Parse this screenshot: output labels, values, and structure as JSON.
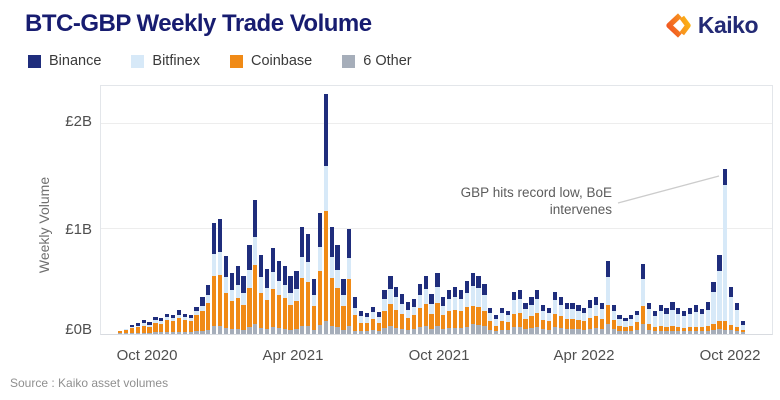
{
  "title": "BTC-GBP Weekly Trade Volume",
  "logo": {
    "text": "Kaiko",
    "icon": "kaiko-diamond-icon",
    "icon_colors": [
      "#f04e23",
      "#f7901e",
      "#fcb415"
    ]
  },
  "legend": [
    {
      "label": "Binance",
      "color": "#1f2d7c"
    },
    {
      "label": "Bitfinex",
      "color": "#d7e9f8"
    },
    {
      "label": "Coinbase",
      "color": "#f08a16"
    },
    {
      "label": "6 Other",
      "color": "#a6aeba"
    }
  ],
  "annotation": {
    "line1": "GBP hits record low, BoE",
    "line2": "intervenes"
  },
  "source": "Source : Kaiko asset volumes",
  "chart_data": {
    "type": "bar",
    "stacked": true,
    "title": "BTC-GBP Weekly Trade Volume",
    "ylabel": "Weekly Volume",
    "xlabel": "",
    "unit": "GBP billions per week",
    "ylim": [
      0,
      2.4
    ],
    "yticks": [
      "£0B",
      "£1B",
      "£2B"
    ],
    "xticks": [
      "Oct 2020",
      "Apr 2021",
      "Oct 2021",
      "Apr 2022",
      "Oct 2022"
    ],
    "grid": true,
    "legend_position": "top-left",
    "x_frequency": "weekly",
    "n_weeks": 107,
    "stack_order": "bottom-to-top",
    "series": [
      {
        "name": "6 Other",
        "color": "#a6aeba",
        "values": [
          0.01,
          0.01,
          0.01,
          0.01,
          0.01,
          0.01,
          0.02,
          0.02,
          0.02,
          0.02,
          0.02,
          0.02,
          0.02,
          0.03,
          0.03,
          0.04,
          0.08,
          0.08,
          0.06,
          0.05,
          0.05,
          0.04,
          0.07,
          0.1,
          0.06,
          0.05,
          0.07,
          0.06,
          0.05,
          0.04,
          0.05,
          0.08,
          0.08,
          0.04,
          0.09,
          0.12,
          0.08,
          0.07,
          0.04,
          0.08,
          0.03,
          0.03,
          0.03,
          0.04,
          0.03,
          0.06,
          0.08,
          0.06,
          0.05,
          0.04,
          0.05,
          0.07,
          0.08,
          0.05,
          0.08,
          0.05,
          0.06,
          0.06,
          0.06,
          0.07,
          0.1,
          0.09,
          0.08,
          0.04,
          0.03,
          0.04,
          0.04,
          0.07,
          0.07,
          0.05,
          0.06,
          0.07,
          0.05,
          0.04,
          0.07,
          0.06,
          0.05,
          0.05,
          0.05,
          0.04,
          0.05,
          0.06,
          0.05,
          0.1,
          0.05,
          0.03,
          0.03,
          0.03,
          0.04,
          0.1,
          0.04,
          0.03,
          0.03,
          0.03,
          0.03,
          0.03,
          0.03,
          0.03,
          0.03,
          0.03,
          0.03,
          0.04,
          0.05,
          0.04,
          0.04,
          0.03,
          0.02
        ]
      },
      {
        "name": "Coinbase",
        "color": "#f08a16",
        "values": [
          0.02,
          0.03,
          0.05,
          0.06,
          0.07,
          0.06,
          0.09,
          0.08,
          0.11,
          0.1,
          0.13,
          0.11,
          0.1,
          0.15,
          0.19,
          0.26,
          0.47,
          0.48,
          0.33,
          0.26,
          0.29,
          0.24,
          0.37,
          0.56,
          0.33,
          0.27,
          0.36,
          0.31,
          0.29,
          0.24,
          0.26,
          0.45,
          0.42,
          0.23,
          0.51,
          1.05,
          0.45,
          0.37,
          0.23,
          0.44,
          0.15,
          0.08,
          0.08,
          0.1,
          0.08,
          0.16,
          0.21,
          0.17,
          0.14,
          0.11,
          0.13,
          0.18,
          0.21,
          0.14,
          0.22,
          0.13,
          0.16,
          0.17,
          0.16,
          0.19,
          0.17,
          0.17,
          0.14,
          0.08,
          0.05,
          0.08,
          0.07,
          0.12,
          0.13,
          0.09,
          0.11,
          0.13,
          0.08,
          0.08,
          0.12,
          0.11,
          0.09,
          0.09,
          0.08,
          0.08,
          0.1,
          0.11,
          0.09,
          0.18,
          0.08,
          0.05,
          0.04,
          0.05,
          0.07,
          0.17,
          0.06,
          0.04,
          0.05,
          0.04,
          0.05,
          0.04,
          0.03,
          0.04,
          0.04,
          0.04,
          0.05,
          0.06,
          0.07,
          0.08,
          0.05,
          0.04,
          0.02
        ]
      },
      {
        "name": "Bitfinex",
        "color": "#d7e9f8",
        "values": [
          0.0,
          0.01,
          0.01,
          0.01,
          0.02,
          0.02,
          0.02,
          0.02,
          0.03,
          0.03,
          0.03,
          0.03,
          0.03,
          0.04,
          0.05,
          0.07,
          0.21,
          0.22,
          0.15,
          0.11,
          0.13,
          0.11,
          0.17,
          0.26,
          0.15,
          0.12,
          0.16,
          0.14,
          0.13,
          0.11,
          0.12,
          0.2,
          0.19,
          0.1,
          0.23,
          0.43,
          0.2,
          0.17,
          0.1,
          0.2,
          0.07,
          0.06,
          0.05,
          0.07,
          0.05,
          0.11,
          0.14,
          0.12,
          0.1,
          0.08,
          0.08,
          0.12,
          0.14,
          0.1,
          0.15,
          0.09,
          0.11,
          0.12,
          0.11,
          0.13,
          0.19,
          0.18,
          0.15,
          0.08,
          0.06,
          0.08,
          0.07,
          0.13,
          0.13,
          0.1,
          0.11,
          0.13,
          0.09,
          0.08,
          0.13,
          0.11,
          0.1,
          0.1,
          0.09,
          0.08,
          0.1,
          0.11,
          0.1,
          0.26,
          0.09,
          0.06,
          0.05,
          0.06,
          0.07,
          0.25,
          0.14,
          0.1,
          0.14,
          0.12,
          0.15,
          0.12,
          0.11,
          0.12,
          0.14,
          0.12,
          0.15,
          0.3,
          0.48,
          1.3,
          0.26,
          0.16,
          0.05
        ]
      },
      {
        "name": "Binance",
        "color": "#1f2d7c",
        "values": [
          0.0,
          0.0,
          0.01,
          0.02,
          0.03,
          0.02,
          0.03,
          0.03,
          0.03,
          0.03,
          0.05,
          0.03,
          0.03,
          0.04,
          0.08,
          0.1,
          0.3,
          0.32,
          0.2,
          0.16,
          0.18,
          0.16,
          0.24,
          0.36,
          0.21,
          0.18,
          0.23,
          0.19,
          0.18,
          0.16,
          0.17,
          0.29,
          0.26,
          0.15,
          0.32,
          0.69,
          0.29,
          0.24,
          0.15,
          0.28,
          0.1,
          0.05,
          0.04,
          0.05,
          0.05,
          0.09,
          0.12,
          0.1,
          0.09,
          0.07,
          0.07,
          0.11,
          0.12,
          0.09,
          0.13,
          0.08,
          0.09,
          0.1,
          0.09,
          0.11,
          0.12,
          0.11,
          0.11,
          0.05,
          0.04,
          0.05,
          0.04,
          0.08,
          0.09,
          0.06,
          0.07,
          0.09,
          0.06,
          0.05,
          0.08,
          0.07,
          0.06,
          0.06,
          0.06,
          0.05,
          0.07,
          0.07,
          0.06,
          0.16,
          0.06,
          0.04,
          0.03,
          0.04,
          0.04,
          0.15,
          0.06,
          0.05,
          0.06,
          0.06,
          0.07,
          0.06,
          0.05,
          0.06,
          0.07,
          0.05,
          0.07,
          0.1,
          0.15,
          0.15,
          0.1,
          0.07,
          0.03
        ]
      }
    ],
    "annotations": [
      {
        "text": "GBP hits record low, BoE intervenes",
        "target_week_index": 103,
        "target_value": 1.57
      }
    ]
  }
}
